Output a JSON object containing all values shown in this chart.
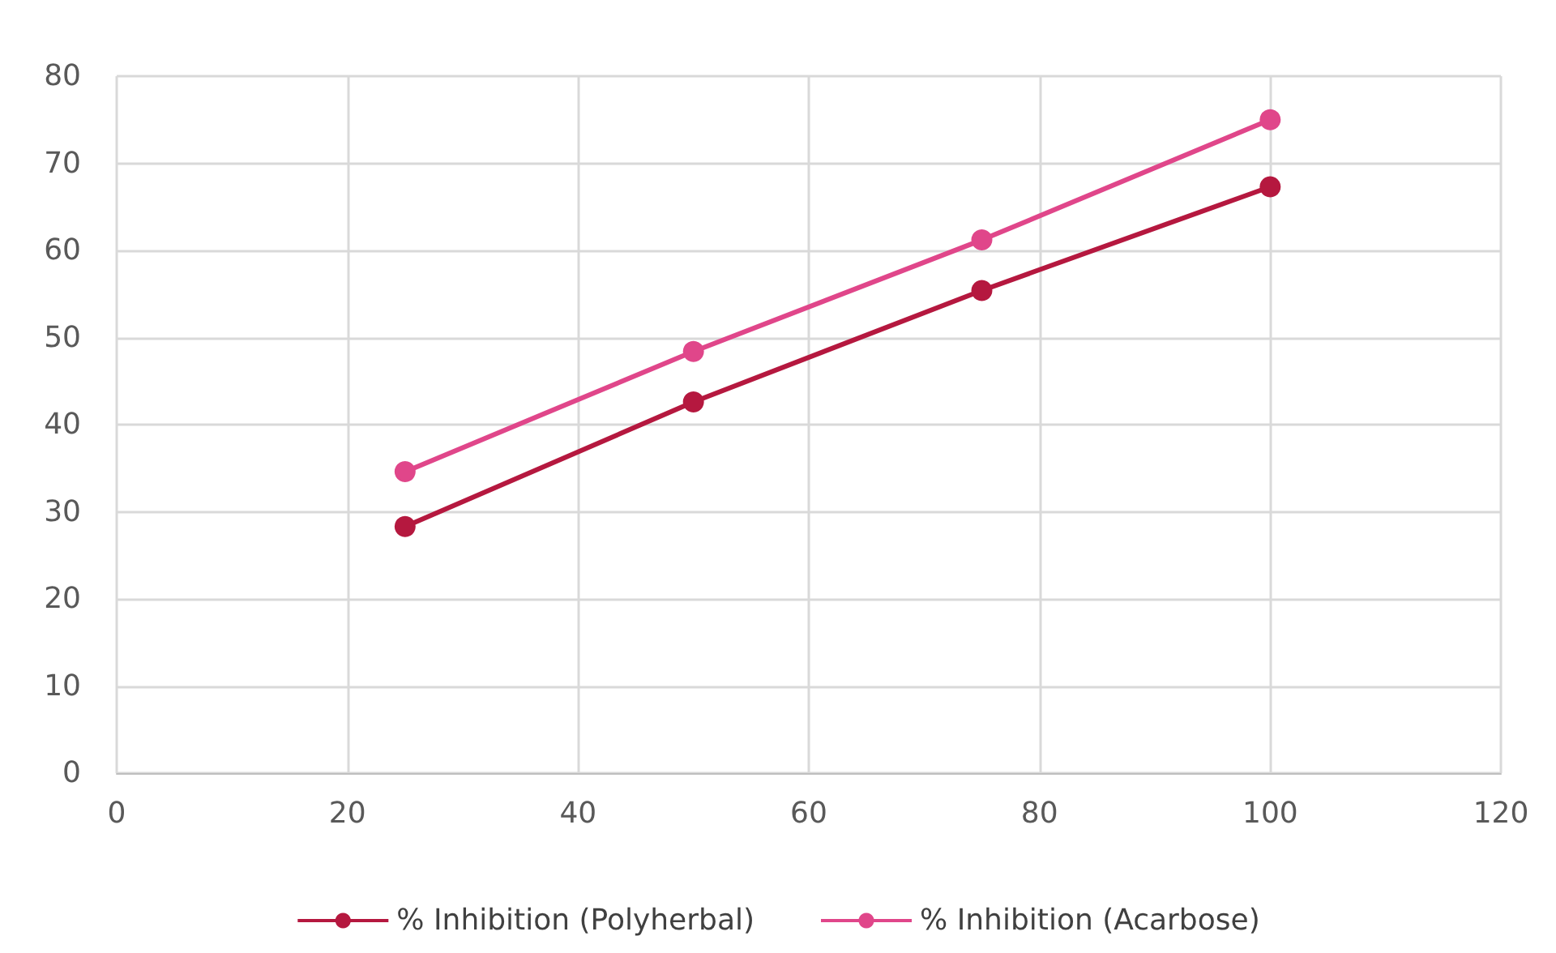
{
  "chart_data": {
    "type": "line",
    "x": [
      25,
      50,
      75,
      100
    ],
    "series": [
      {
        "name": "% Inhibition (Polyherbal)",
        "color": "#b5183f",
        "values": [
          28.3,
          42.6,
          55.4,
          67.3
        ]
      },
      {
        "name": "% Inhibition (Acarbose)",
        "color": "#e0468a",
        "values": [
          34.6,
          48.4,
          61.2,
          75.0
        ]
      }
    ],
    "xlim": [
      0,
      120
    ],
    "xticks": [
      0,
      20,
      40,
      60,
      80,
      100,
      120
    ],
    "ylim": [
      0,
      80
    ],
    "yticks": [
      0,
      10,
      20,
      30,
      40,
      50,
      60,
      70,
      80
    ],
    "grid": true,
    "legend": "bottom",
    "marker": "circle",
    "line_style": "solid"
  }
}
